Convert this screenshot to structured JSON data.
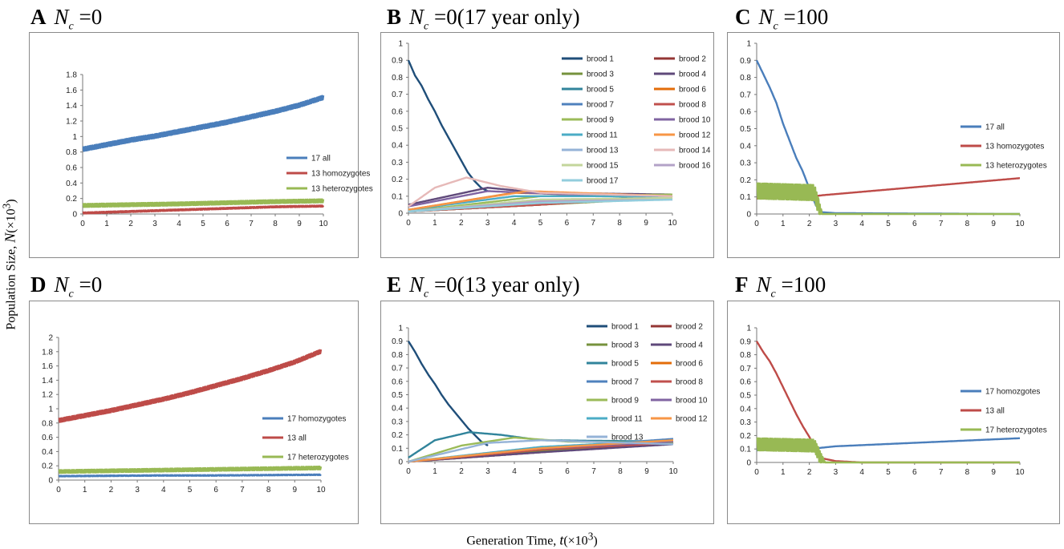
{
  "axis_labels": {
    "y_prefix": "Population Size, ",
    "y_var": "N",
    "y_unit": "(×10",
    "y_exp": "3",
    "y_close": ")",
    "x_prefix": "Generation Time, ",
    "x_var": "t",
    "x_unit": "(×10",
    "x_exp": "3",
    "x_close": ")"
  },
  "panels": [
    {
      "letter": "A",
      "nc_var": "N",
      "nc_sub": "c",
      "rest": " =0"
    },
    {
      "letter": "B",
      "nc_var": "N",
      "nc_sub": "c",
      "rest": " =0(17 year only)"
    },
    {
      "letter": "C",
      "nc_var": "N",
      "nc_sub": "c",
      "rest": " =100"
    },
    {
      "letter": "D",
      "nc_var": "N",
      "nc_sub": "c",
      "rest": " =0"
    },
    {
      "letter": "E",
      "nc_var": "N",
      "nc_sub": "c",
      "rest": " =0(13 year only)"
    },
    {
      "letter": "F",
      "nc_var": "N",
      "nc_sub": "c",
      "rest": " =100"
    }
  ],
  "chart_data": [
    {
      "panel": "A",
      "type": "line",
      "xlim": [
        0,
        10
      ],
      "ylim": [
        0,
        1.8
      ],
      "xticks": [
        0,
        1,
        2,
        3,
        4,
        5,
        6,
        7,
        8,
        9,
        10
      ],
      "yticks": [
        0,
        0.2,
        0.4,
        0.6,
        0.8,
        1,
        1.2,
        1.4,
        1.6,
        1.8
      ],
      "legend_position": "right",
      "series": [
        {
          "name": "17 all",
          "color": "#4a7ebb",
          "x": [
            0,
            1,
            2,
            3,
            4,
            5,
            6,
            7,
            8,
            9,
            10
          ],
          "y": [
            0.86,
            0.92,
            0.98,
            1.03,
            1.09,
            1.15,
            1.21,
            1.28,
            1.35,
            1.43,
            1.53
          ],
          "oscillation": 0.05
        },
        {
          "name": "13 homozygotes",
          "color": "#be4b48",
          "x": [
            0,
            2,
            4,
            6,
            8,
            10
          ],
          "y": [
            0.02,
            0.04,
            0.06,
            0.08,
            0.1,
            0.11
          ],
          "oscillation": 0.015
        },
        {
          "name": "13 heterozygotes",
          "color": "#98b954",
          "x": [
            0,
            2,
            4,
            6,
            8,
            10
          ],
          "y": [
            0.13,
            0.14,
            0.15,
            0.165,
            0.18,
            0.19
          ],
          "oscillation": 0.04
        }
      ]
    },
    {
      "panel": "B",
      "type": "line",
      "xlim": [
        0,
        10
      ],
      "ylim": [
        0,
        1
      ],
      "xticks": [
        0,
        1,
        2,
        3,
        4,
        5,
        6,
        7,
        8,
        9,
        10
      ],
      "yticks": [
        0,
        0.1,
        0.2,
        0.3,
        0.4,
        0.5,
        0.6,
        0.7,
        0.8,
        0.9,
        1
      ],
      "legend_position": "top-right",
      "series": [
        {
          "name": "brood 1",
          "color": "#1f4e79",
          "x": [
            0,
            0.25,
            0.5,
            0.75,
            1,
            1.25,
            1.5,
            1.75,
            2,
            2.25,
            2.5,
            2.75,
            3
          ],
          "y": [
            0.9,
            0.81,
            0.75,
            0.67,
            0.6,
            0.52,
            0.45,
            0.38,
            0.31,
            0.24,
            0.19,
            0.15,
            0.13
          ]
        },
        {
          "name": "brood 2",
          "color": "#943634",
          "x": [
            0,
            5,
            10
          ],
          "y": [
            0.01,
            0.05,
            0.1
          ]
        },
        {
          "name": "brood 3",
          "color": "#76923c",
          "x": [
            0,
            5,
            10
          ],
          "y": [
            0.01,
            0.05,
            0.09
          ]
        },
        {
          "name": "brood 4",
          "color": "#5f497a",
          "x": [
            0,
            3,
            5,
            10
          ],
          "y": [
            0.05,
            0.15,
            0.12,
            0.11
          ]
        },
        {
          "name": "brood 5",
          "color": "#31849b",
          "x": [
            0,
            5,
            10
          ],
          "y": [
            0.02,
            0.07,
            0.1
          ]
        },
        {
          "name": "brood 6",
          "color": "#e36c09",
          "x": [
            0,
            4,
            10
          ],
          "y": [
            0.02,
            0.12,
            0.1
          ]
        },
        {
          "name": "brood 7",
          "color": "#4f81bd",
          "x": [
            0,
            5,
            10
          ],
          "y": [
            0.01,
            0.06,
            0.1
          ]
        },
        {
          "name": "brood 8",
          "color": "#c0504d",
          "x": [
            0,
            5,
            10
          ],
          "y": [
            0.01,
            0.05,
            0.1
          ]
        },
        {
          "name": "brood 9",
          "color": "#9bbb59",
          "x": [
            0,
            5,
            10
          ],
          "y": [
            0.01,
            0.1,
            0.11
          ]
        },
        {
          "name": "brood 10",
          "color": "#8064a2",
          "x": [
            0,
            3,
            6,
            10
          ],
          "y": [
            0.04,
            0.13,
            0.11,
            0.1
          ]
        },
        {
          "name": "brood 11",
          "color": "#4bacc6",
          "x": [
            0,
            4,
            10
          ],
          "y": [
            0.02,
            0.1,
            0.1
          ]
        },
        {
          "name": "brood 12",
          "color": "#f79646",
          "x": [
            0,
            4.5,
            10
          ],
          "y": [
            0.02,
            0.13,
            0.1
          ]
        },
        {
          "name": "brood 13",
          "color": "#95b3d7",
          "x": [
            0,
            5,
            10
          ],
          "y": [
            0.01,
            0.08,
            0.09
          ]
        },
        {
          "name": "brood 14",
          "color": "#e6b9b8",
          "x": [
            0,
            1,
            2.2,
            3.5,
            5,
            10
          ],
          "y": [
            0.04,
            0.15,
            0.21,
            0.16,
            0.12,
            0.1
          ]
        },
        {
          "name": "brood 15",
          "color": "#c3d69b",
          "x": [
            0,
            5,
            10
          ],
          "y": [
            0.01,
            0.08,
            0.09
          ]
        },
        {
          "name": "brood 16",
          "color": "#b3a2c7",
          "x": [
            0,
            5,
            10
          ],
          "y": [
            0.01,
            0.07,
            0.08
          ]
        },
        {
          "name": "brood 17",
          "color": "#93cddd",
          "x": [
            0,
            5,
            10
          ],
          "y": [
            0.01,
            0.06,
            0.08
          ]
        }
      ]
    },
    {
      "panel": "C",
      "type": "line",
      "xlim": [
        0,
        10
      ],
      "ylim": [
        0,
        1
      ],
      "xticks": [
        0,
        1,
        2,
        3,
        4,
        5,
        6,
        7,
        8,
        9,
        10
      ],
      "yticks": [
        0,
        0.1,
        0.2,
        0.3,
        0.4,
        0.5,
        0.6,
        0.7,
        0.8,
        0.9,
        1
      ],
      "legend_position": "right",
      "series": [
        {
          "name": "17 all",
          "color": "#4a7ebb",
          "x": [
            0,
            0.25,
            0.5,
            0.75,
            1,
            1.25,
            1.5,
            1.75,
            2,
            2.25,
            2.5,
            3,
            10
          ],
          "y": [
            0.9,
            0.82,
            0.74,
            0.65,
            0.53,
            0.43,
            0.33,
            0.25,
            0.15,
            0.05,
            0.01,
            0.005,
            0.0
          ]
        },
        {
          "name": "13 homozygotes",
          "color": "#be4b48",
          "x": [
            0,
            2,
            2.5,
            10
          ],
          "y": [
            0.09,
            0.1,
            0.11,
            0.21
          ]
        },
        {
          "name": "13 heterozygotes",
          "color": "#98b954",
          "x": [
            0,
            2.2,
            2.5,
            10
          ],
          "y": [
            0.18,
            0.17,
            0.0,
            0.0
          ],
          "oscillation": 0.09
        }
      ]
    },
    {
      "panel": "D",
      "type": "line",
      "xlim": [
        0,
        10
      ],
      "ylim": [
        0,
        2
      ],
      "xticks": [
        0,
        1,
        2,
        3,
        4,
        5,
        6,
        7,
        8,
        9,
        10
      ],
      "yticks": [
        0,
        0.2,
        0.4,
        0.6,
        0.8,
        1,
        1.2,
        1.4,
        1.6,
        1.8,
        2
      ],
      "legend_position": "right",
      "series": [
        {
          "name": "17 homozygotes",
          "color": "#4a7ebb",
          "x": [
            0,
            2,
            4,
            6,
            8,
            10
          ],
          "y": [
            0.06,
            0.065,
            0.07,
            0.07,
            0.075,
            0.08
          ],
          "oscillation": 0.01
        },
        {
          "name": "13 all",
          "color": "#be4b48",
          "x": [
            0,
            1,
            2,
            3,
            4,
            5,
            6,
            7,
            8,
            9,
            10
          ],
          "y": [
            0.86,
            0.93,
            1.0,
            1.08,
            1.16,
            1.25,
            1.35,
            1.45,
            1.56,
            1.68,
            1.83
          ],
          "oscillation": 0.05
        },
        {
          "name": "17 heterozygotes",
          "color": "#98b954",
          "x": [
            0,
            2,
            4,
            6,
            8,
            10
          ],
          "y": [
            0.14,
            0.15,
            0.16,
            0.17,
            0.18,
            0.19
          ],
          "oscillation": 0.04
        }
      ]
    },
    {
      "panel": "E",
      "type": "line",
      "xlim": [
        0,
        10
      ],
      "ylim": [
        0,
        1
      ],
      "xticks": [
        0,
        1,
        2,
        3,
        4,
        5,
        6,
        7,
        8,
        9,
        10
      ],
      "yticks": [
        0,
        0.1,
        0.2,
        0.3,
        0.4,
        0.5,
        0.6,
        0.7,
        0.8,
        0.9,
        1
      ],
      "legend_position": "top-right",
      "series": [
        {
          "name": "brood 1",
          "color": "#1f4e79",
          "x": [
            0,
            0.25,
            0.5,
            0.75,
            1,
            1.25,
            1.5,
            1.75,
            2,
            2.25,
            2.5,
            2.75,
            3
          ],
          "y": [
            0.9,
            0.82,
            0.73,
            0.65,
            0.58,
            0.5,
            0.43,
            0.37,
            0.31,
            0.25,
            0.2,
            0.15,
            0.12
          ]
        },
        {
          "name": "brood 2",
          "color": "#943634",
          "x": [
            0,
            5,
            10
          ],
          "y": [
            0.0,
            0.07,
            0.14
          ]
        },
        {
          "name": "brood 3",
          "color": "#76923c",
          "x": [
            0,
            5,
            10
          ],
          "y": [
            0.0,
            0.08,
            0.15
          ]
        },
        {
          "name": "brood 4",
          "color": "#5f497a",
          "x": [
            0,
            5,
            10
          ],
          "y": [
            0.0,
            0.07,
            0.13
          ]
        },
        {
          "name": "brood 5",
          "color": "#31849b",
          "x": [
            0,
            1,
            2.3,
            3.5,
            5,
            10
          ],
          "y": [
            0.03,
            0.16,
            0.22,
            0.2,
            0.16,
            0.15
          ]
        },
        {
          "name": "brood 6",
          "color": "#e36c09",
          "x": [
            0,
            5,
            10
          ],
          "y": [
            0.0,
            0.09,
            0.16
          ]
        },
        {
          "name": "brood 7",
          "color": "#4f81bd",
          "x": [
            0,
            5,
            10
          ],
          "y": [
            0.0,
            0.1,
            0.17
          ]
        },
        {
          "name": "brood 8",
          "color": "#c0504d",
          "x": [
            0,
            5,
            10
          ],
          "y": [
            0.0,
            0.09,
            0.14
          ]
        },
        {
          "name": "brood 9",
          "color": "#9bbb59",
          "x": [
            0,
            2,
            4,
            6,
            10
          ],
          "y": [
            0.0,
            0.12,
            0.18,
            0.15,
            0.14
          ]
        },
        {
          "name": "brood 10",
          "color": "#8064a2",
          "x": [
            0,
            5,
            10
          ],
          "y": [
            0.0,
            0.1,
            0.15
          ]
        },
        {
          "name": "brood 11",
          "color": "#4bacc6",
          "x": [
            0,
            5,
            10
          ],
          "y": [
            0.0,
            0.11,
            0.16
          ]
        },
        {
          "name": "brood 12",
          "color": "#f79646",
          "x": [
            0,
            5,
            10
          ],
          "y": [
            0.0,
            0.1,
            0.16
          ]
        },
        {
          "name": "brood 13",
          "color": "#95b3d7",
          "x": [
            0,
            3,
            5,
            10
          ],
          "y": [
            0.0,
            0.14,
            0.16,
            0.13
          ]
        }
      ]
    },
    {
      "panel": "F",
      "type": "line",
      "xlim": [
        0,
        10
      ],
      "ylim": [
        0,
        1
      ],
      "xticks": [
        0,
        1,
        2,
        3,
        4,
        5,
        6,
        7,
        8,
        9,
        10
      ],
      "yticks": [
        0,
        0.1,
        0.2,
        0.3,
        0.4,
        0.5,
        0.6,
        0.7,
        0.8,
        0.9,
        1
      ],
      "legend_position": "right",
      "series": [
        {
          "name": "17 homozgotes",
          "color": "#4a7ebb",
          "x": [
            0,
            2,
            2.5,
            3,
            10
          ],
          "y": [
            0.09,
            0.1,
            0.11,
            0.12,
            0.18
          ]
        },
        {
          "name": "13 all",
          "color": "#be4b48",
          "x": [
            0,
            0.25,
            0.5,
            0.75,
            1,
            1.25,
            1.5,
            1.75,
            2,
            2.25,
            2.5,
            3,
            4,
            10
          ],
          "y": [
            0.9,
            0.82,
            0.75,
            0.66,
            0.56,
            0.46,
            0.36,
            0.27,
            0.19,
            0.1,
            0.03,
            0.01,
            0.0,
            0.0
          ]
        },
        {
          "name": "17 heterozygotes",
          "color": "#98b954",
          "x": [
            0,
            2.2,
            2.6,
            10
          ],
          "y": [
            0.18,
            0.17,
            0.0,
            0.0
          ],
          "oscillation": 0.09
        }
      ]
    }
  ]
}
